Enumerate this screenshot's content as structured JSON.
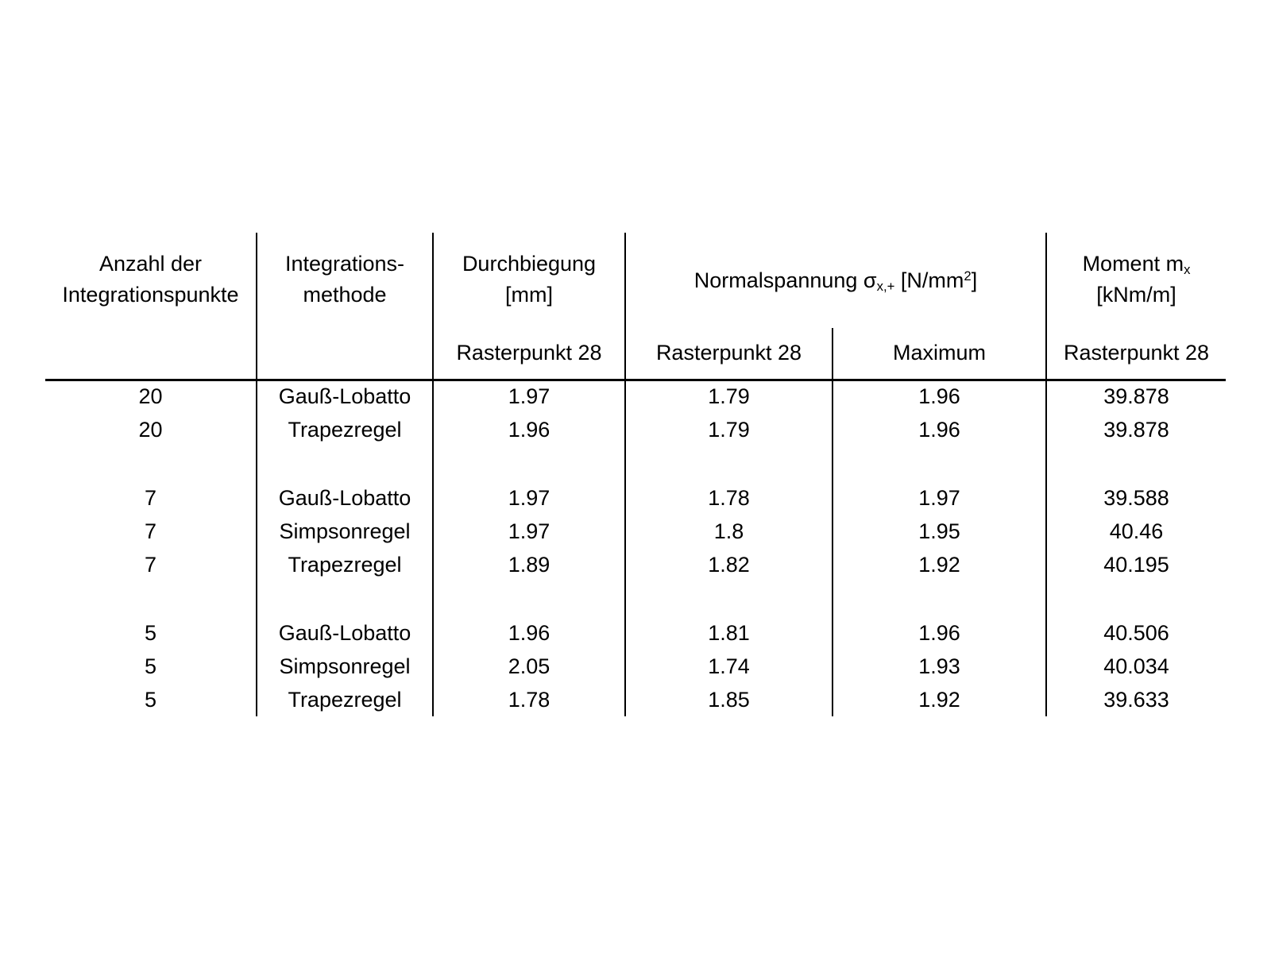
{
  "table": {
    "header": {
      "anzahl": {
        "line1": "Anzahl der",
        "line2": "Integrationspunkte"
      },
      "methode": {
        "line1": "Integrations-",
        "line2": "methode"
      },
      "durchbiegung": {
        "line1": "Durchbiegung",
        "line2": "[mm]",
        "sub": "Rasterpunkt 28"
      },
      "normalspannung": {
        "text": "Normalspannung σ",
        "subscript": "x,+",
        "unit_prefix": " [N/mm",
        "superscript": "2",
        "unit_suffix": "]",
        "sub_left": "Rasterpunkt 28",
        "sub_right": "Maximum"
      },
      "moment": {
        "text": "Moment m",
        "subscript": "x",
        "line2": "[kNm/m]",
        "sub": "Rasterpunkt 28"
      }
    },
    "rows": [
      {
        "points": "20",
        "methode": "Gauß-Lobatto",
        "durchbiegung": "1.97",
        "ns_rasterpunkt": "1.79",
        "ns_maximum": "1.96",
        "moment": "39.878"
      },
      {
        "points": "20",
        "methode": "Trapezregel",
        "durchbiegung": "1.96",
        "ns_rasterpunkt": "1.79",
        "ns_maximum": "1.96",
        "moment": "39.878"
      },
      {
        "points": "7",
        "methode": "Gauß-Lobatto",
        "durchbiegung": "1.97",
        "ns_rasterpunkt": "1.78",
        "ns_maximum": "1.97",
        "moment": "39.588"
      },
      {
        "points": "7",
        "methode": "Simpsonregel",
        "durchbiegung": "1.97",
        "ns_rasterpunkt": "1.8",
        "ns_maximum": "1.95",
        "moment": "40.46"
      },
      {
        "points": "7",
        "methode": "Trapezregel",
        "durchbiegung": "1.89",
        "ns_rasterpunkt": "1.82",
        "ns_maximum": "1.92",
        "moment": "40.195"
      },
      {
        "points": "5",
        "methode": "Gauß-Lobatto",
        "durchbiegung": "1.96",
        "ns_rasterpunkt": "1.81",
        "ns_maximum": "1.96",
        "moment": "40.506"
      },
      {
        "points": "5",
        "methode": "Simpsonregel",
        "durchbiegung": "2.05",
        "ns_rasterpunkt": "1.74",
        "ns_maximum": "1.93",
        "moment": "40.034"
      },
      {
        "points": "5",
        "methode": "Trapezregel",
        "durchbiegung": "1.78",
        "ns_rasterpunkt": "1.85",
        "ns_maximum": "1.92",
        "moment": "39.633"
      }
    ],
    "colors": {
      "text": "#000000",
      "line": "#000000",
      "background": "#ffffff"
    }
  }
}
